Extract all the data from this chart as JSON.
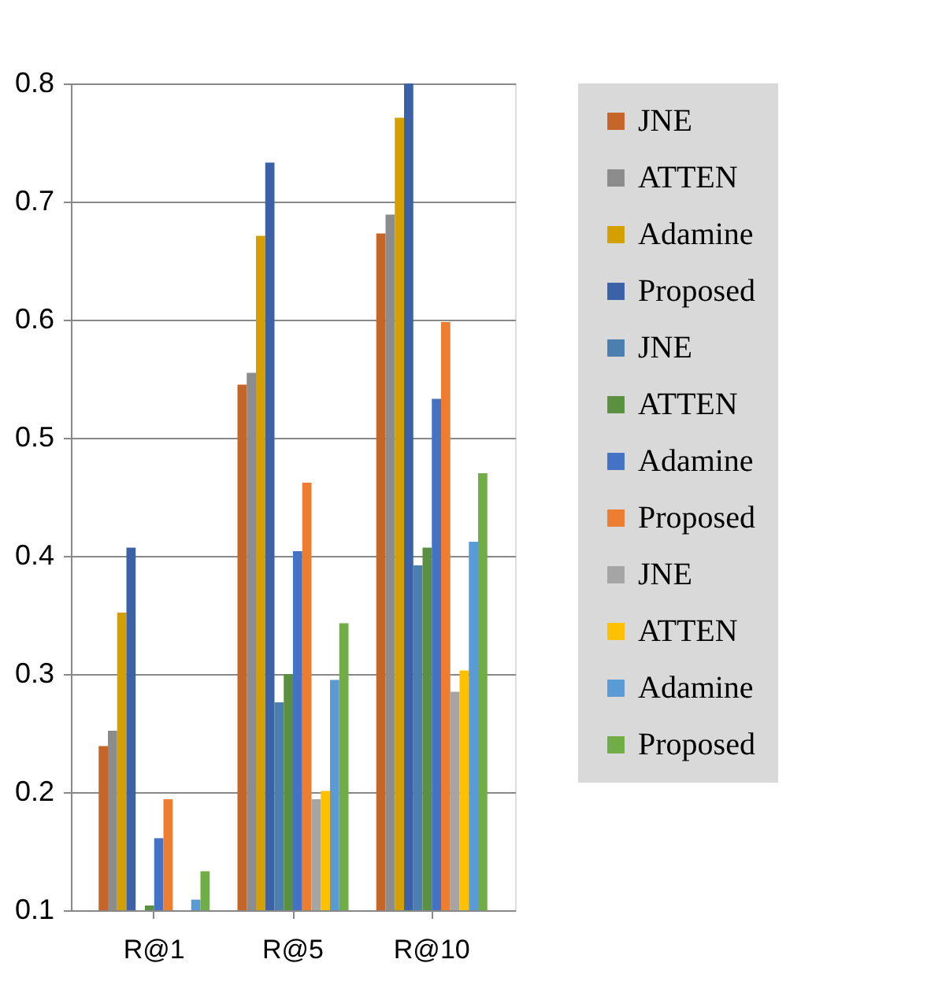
{
  "chart_data": {
    "type": "bar",
    "categories": [
      "R@1",
      "R@5",
      "R@10"
    ],
    "series": [
      {
        "name": "JNE",
        "color": "#c5652a",
        "values": [
          0.239,
          0.545,
          0.673
        ]
      },
      {
        "name": "ATTEN",
        "color": "#8c8c8c",
        "values": [
          0.252,
          0.555,
          0.689
        ]
      },
      {
        "name": "Adamine",
        "color": "#d4a000",
        "values": [
          0.352,
          0.671,
          0.771
        ]
      },
      {
        "name": "Proposed",
        "color": "#3b62a8",
        "values": [
          0.407,
          0.733,
          0.8
        ]
      },
      {
        "name": "JNE",
        "color": "#4a7fb0",
        "values": [
          0.1,
          0.276,
          0.392
        ]
      },
      {
        "name": "ATTEN",
        "color": "#5b9040",
        "values": [
          0.104,
          0.3,
          0.407
        ]
      },
      {
        "name": "Adamine",
        "color": "#4472c4",
        "values": [
          0.161,
          0.404,
          0.533
        ]
      },
      {
        "name": "Proposed",
        "color": "#ed7d31",
        "values": [
          0.194,
          0.462,
          0.598
        ]
      },
      {
        "name": "JNE",
        "color": "#a5a5a5",
        "values": [
          0.1,
          0.194,
          0.285
        ]
      },
      {
        "name": "ATTEN",
        "color": "#ffc000",
        "values": [
          0.1,
          0.201,
          0.303
        ]
      },
      {
        "name": "Adamine",
        "color": "#5b9bd5",
        "values": [
          0.109,
          0.295,
          0.412
        ]
      },
      {
        "name": "Proposed",
        "color": "#70ad47",
        "values": [
          0.133,
          0.343,
          0.47
        ]
      }
    ],
    "ylim": [
      0.1,
      0.8
    ],
    "yticks": [
      0.1,
      0.2,
      0.3,
      0.4,
      0.5,
      0.6,
      0.7,
      0.8
    ],
    "grid": "y",
    "legend": "right"
  }
}
